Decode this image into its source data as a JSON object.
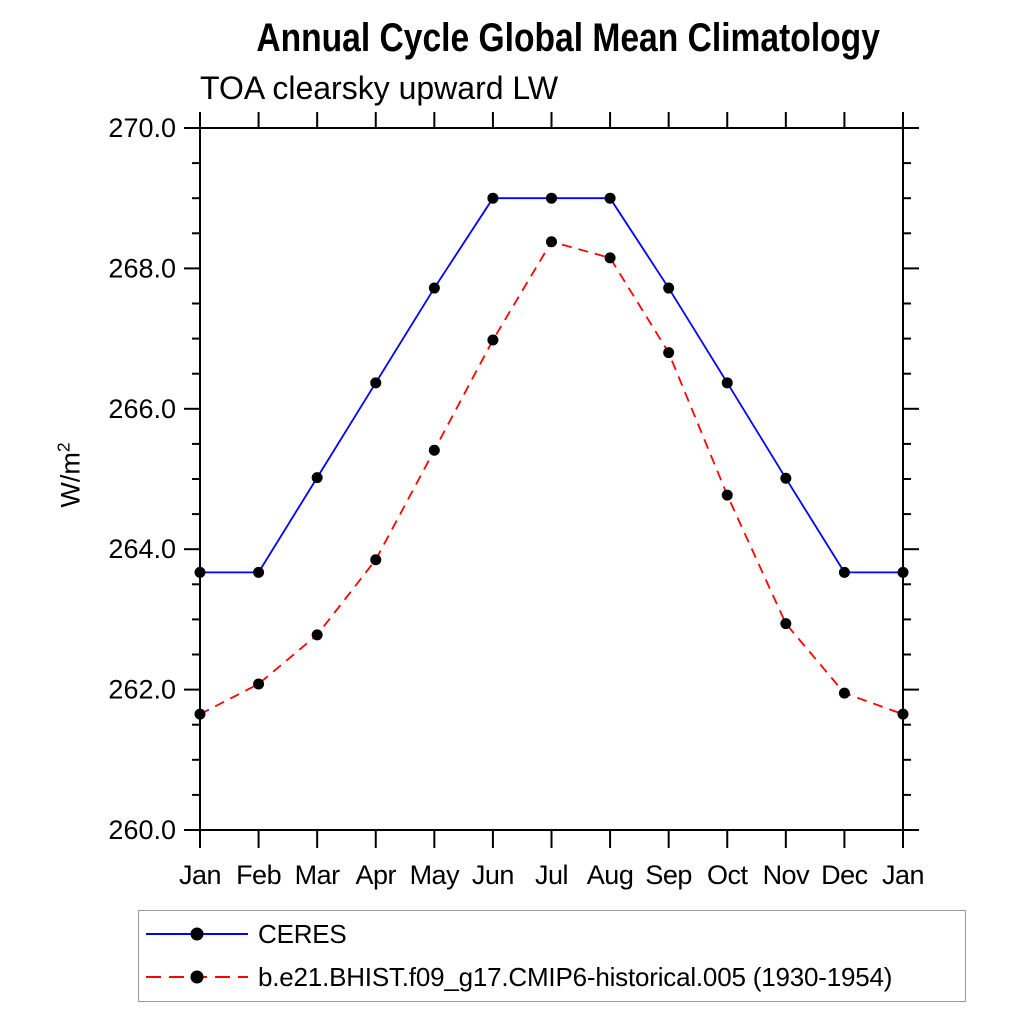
{
  "window": {
    "background": "#ffffff"
  },
  "chart_data": {
    "type": "line",
    "title": "Annual Cycle Global Mean Climatology",
    "subtitle": "TOA clearsky upward LW",
    "ylabel": {
      "text": "W/m",
      "superscript": "2"
    },
    "xlabel": "",
    "categories": [
      "Jan",
      "Feb",
      "Mar",
      "Apr",
      "May",
      "Jun",
      "Jul",
      "Aug",
      "Sep",
      "Oct",
      "Nov",
      "Dec",
      "Jan"
    ],
    "ylim": [
      260.0,
      270.0
    ],
    "y_major_ticks": [
      260.0,
      262.0,
      264.0,
      266.0,
      268.0,
      270.0
    ],
    "y_major_tick_labels": [
      "260.0",
      "262.0",
      "264.0",
      "266.0",
      "268.0",
      "270.0"
    ],
    "y_minor_tick_step": 0.5,
    "grid": false,
    "legend_position": "below-plot-left-box",
    "axis_color": "#000000",
    "series": [
      {
        "name": "CERES",
        "color": "#0000ff",
        "line_style": "solid",
        "marker": "filled-circle",
        "marker_color": "#000000",
        "values": [
          263.67,
          263.67,
          265.02,
          266.37,
          267.72,
          269.0,
          269.0,
          269.0,
          267.72,
          266.37,
          265.01,
          263.67,
          263.67
        ]
      },
      {
        "name": "b.e21.BHIST.f09_g17.CMIP6-historical.005 (1930-1954)",
        "color": "#ff0000",
        "line_style": "dashed",
        "marker": "filled-circle",
        "marker_color": "#000000",
        "values": [
          261.65,
          262.08,
          262.78,
          263.85,
          265.41,
          266.98,
          268.38,
          268.15,
          266.8,
          264.77,
          262.94,
          261.95,
          261.65
        ]
      }
    ]
  }
}
